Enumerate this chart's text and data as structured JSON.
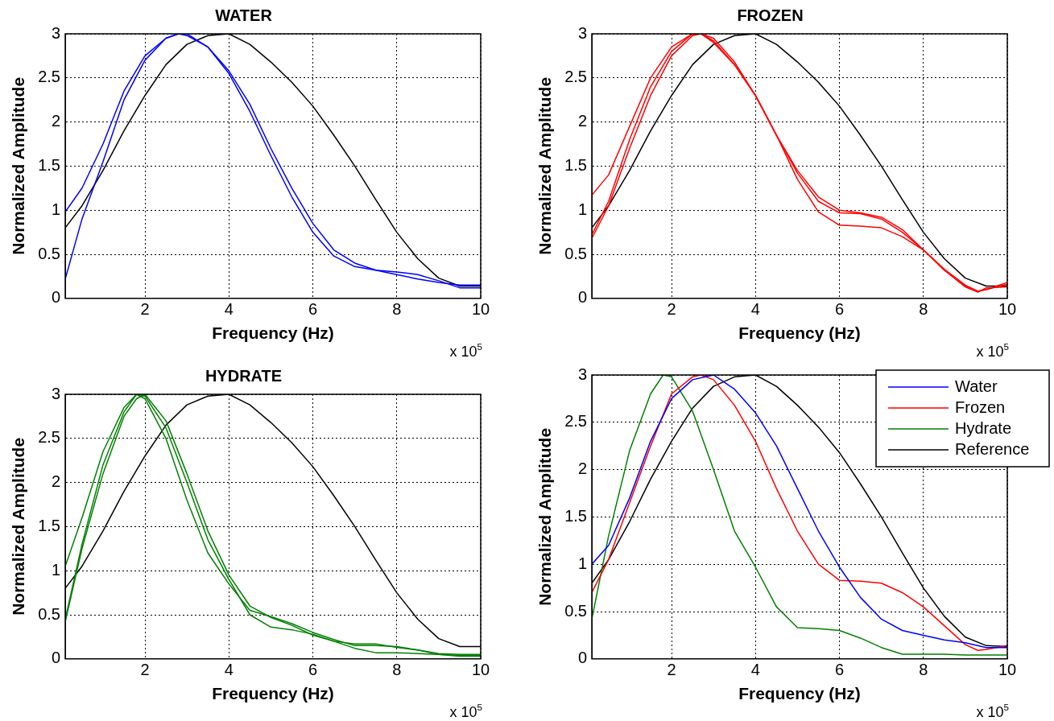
{
  "chart_data": [
    {
      "type": "line",
      "title": "WATER",
      "xlabel": "Frequency (Hz)",
      "ylabel": "Normalized Amplitude",
      "annotations": [
        "x 10$^{5}$"
      ],
      "xlim": [
        0.1,
        10
      ],
      "xticks": [
        2,
        4,
        6,
        8,
        10
      ],
      "ylim": [
        0,
        3
      ],
      "yticks": [
        0,
        0.5,
        1,
        1.5,
        2,
        2.5,
        3
      ],
      "grid": true,
      "marker": "none",
      "line_style": "solid",
      "series": [
        {
          "color": "#0000ff",
          "x": [
            0.1,
            0.5,
            1,
            1.5,
            2,
            2.5,
            2.8,
            3,
            3.5,
            4,
            4.5,
            5,
            5.5,
            6,
            6.5,
            7,
            7.5,
            8,
            8.5,
            9,
            9.5,
            10
          ],
          "values": [
            0.98,
            1.25,
            1.75,
            2.35,
            2.75,
            2.95,
            3.0,
            3.0,
            2.85,
            2.58,
            2.2,
            1.7,
            1.25,
            0.85,
            0.55,
            0.4,
            0.32,
            0.27,
            0.22,
            0.18,
            0.15,
            0.15
          ]
        },
        {
          "color": "#0000ff",
          "x": [
            0.1,
            0.5,
            1,
            1.5,
            2,
            2.5,
            2.8,
            3,
            3.5,
            4,
            4.5,
            5,
            5.5,
            6,
            6.5,
            7,
            7.5,
            8,
            8.5,
            9,
            9.5,
            10
          ],
          "values": [
            0.22,
            0.9,
            1.55,
            2.25,
            2.7,
            2.95,
            3.0,
            2.98,
            2.85,
            2.55,
            2.12,
            1.62,
            1.15,
            0.75,
            0.48,
            0.36,
            0.32,
            0.3,
            0.27,
            0.2,
            0.12,
            0.12
          ]
        },
        {
          "color": "#000000",
          "x": [
            0.1,
            0.5,
            1,
            1.5,
            2,
            2.5,
            3,
            3.5,
            4,
            4.5,
            5,
            5.5,
            6,
            6.5,
            7,
            7.5,
            8,
            8.5,
            9,
            9.5,
            10
          ],
          "values": [
            0.8,
            1.05,
            1.45,
            1.9,
            2.3,
            2.65,
            2.88,
            2.98,
            3.0,
            2.88,
            2.68,
            2.45,
            2.18,
            1.85,
            1.5,
            1.12,
            0.75,
            0.45,
            0.23,
            0.14,
            0.14
          ]
        }
      ]
    },
    {
      "type": "line",
      "title": "FROZEN",
      "xlabel": "Frequency (Hz)",
      "ylabel": "Normalized Amplitude",
      "annotations": [
        "x 10$^{5}$"
      ],
      "xlim": [
        0.1,
        10
      ],
      "xticks": [
        2,
        4,
        6,
        8,
        10
      ],
      "ylim": [
        0,
        3
      ],
      "yticks": [
        0,
        0.5,
        1,
        1.5,
        2,
        2.5,
        3
      ],
      "grid": true,
      "marker": "none",
      "line_style": "solid",
      "series": [
        {
          "color": "#ff0000",
          "x": [
            0.1,
            0.5,
            1,
            1.5,
            2,
            2.5,
            2.7,
            3,
            3.5,
            4,
            4.5,
            5,
            5.5,
            6,
            6.5,
            7,
            7.5,
            8,
            8.5,
            9,
            9.3,
            9.5,
            10
          ],
          "values": [
            1.17,
            1.4,
            1.95,
            2.5,
            2.85,
            3.0,
            3.0,
            2.9,
            2.65,
            2.3,
            1.85,
            1.45,
            1.15,
            1.0,
            0.97,
            0.92,
            0.78,
            0.55,
            0.32,
            0.14,
            0.08,
            0.1,
            0.18
          ]
        },
        {
          "color": "#ff0000",
          "x": [
            0.1,
            0.5,
            1,
            1.5,
            2,
            2.5,
            2.7,
            3,
            3.5,
            4,
            4.5,
            5,
            5.5,
            6,
            6.5,
            7,
            7.5,
            8,
            8.5,
            9,
            9.3,
            9.5,
            10
          ],
          "values": [
            0.72,
            1.1,
            1.8,
            2.4,
            2.8,
            3.0,
            3.0,
            2.92,
            2.65,
            2.3,
            1.85,
            1.42,
            1.1,
            0.97,
            0.96,
            0.9,
            0.75,
            0.55,
            0.33,
            0.15,
            0.08,
            0.1,
            0.16
          ]
        },
        {
          "color": "#ff0000",
          "x": [
            0.1,
            0.5,
            1,
            1.5,
            2,
            2.5,
            2.7,
            3,
            3.5,
            4,
            4.5,
            5,
            5.5,
            6,
            6.5,
            7,
            7.5,
            8,
            8.5,
            9,
            9.3,
            9.5,
            10
          ],
          "values": [
            0.68,
            1.05,
            1.7,
            2.3,
            2.75,
            2.98,
            3.0,
            2.95,
            2.68,
            2.3,
            1.85,
            1.35,
            0.98,
            0.83,
            0.82,
            0.8,
            0.7,
            0.55,
            0.32,
            0.13,
            0.07,
            0.12,
            0.13
          ]
        },
        {
          "color": "#000000",
          "x": [
            0.1,
            0.5,
            1,
            1.5,
            2,
            2.5,
            3,
            3.5,
            4,
            4.5,
            5,
            5.5,
            6,
            6.5,
            7,
            7.5,
            8,
            8.5,
            9,
            9.5,
            10
          ],
          "values": [
            0.8,
            1.05,
            1.45,
            1.9,
            2.3,
            2.65,
            2.88,
            2.98,
            3.0,
            2.88,
            2.68,
            2.45,
            2.18,
            1.85,
            1.5,
            1.12,
            0.75,
            0.45,
            0.23,
            0.14,
            0.14
          ]
        }
      ]
    },
    {
      "type": "line",
      "title": "HYDRATE",
      "xlabel": "Frequency (Hz)",
      "ylabel": "Normalized Amplitude",
      "annotations": [
        "x 10$^{5}$"
      ],
      "xlim": [
        0.1,
        10
      ],
      "xticks": [
        2,
        4,
        6,
        8,
        10
      ],
      "ylim": [
        0,
        3
      ],
      "yticks": [
        0,
        0.5,
        1,
        1.5,
        2,
        2.5,
        3
      ],
      "grid": true,
      "marker": "none",
      "line_style": "solid",
      "series": [
        {
          "color": "#008000",
          "x": [
            0.1,
            0.5,
            1,
            1.5,
            1.8,
            2,
            2.5,
            3,
            3.5,
            4,
            4.5,
            5,
            5.5,
            6,
            6.5,
            7,
            7.5,
            8,
            8.5,
            9,
            9.5,
            10
          ],
          "values": [
            1.05,
            1.6,
            2.35,
            2.85,
            3.0,
            2.95,
            2.5,
            1.8,
            1.2,
            0.85,
            0.55,
            0.48,
            0.4,
            0.3,
            0.22,
            0.15,
            0.15,
            0.14,
            0.1,
            0.05,
            0.04,
            0.04
          ]
        },
        {
          "color": "#008000",
          "x": [
            0.1,
            0.5,
            1,
            1.5,
            1.8,
            2,
            2.5,
            3,
            3.5,
            4,
            4.5,
            5,
            5.5,
            6,
            6.5,
            7,
            7.5,
            8,
            8.5,
            9,
            9.5,
            10
          ],
          "values": [
            0.45,
            1.3,
            2.2,
            2.8,
            3.0,
            2.98,
            2.62,
            2.0,
            1.35,
            0.9,
            0.5,
            0.36,
            0.33,
            0.28,
            0.2,
            0.12,
            0.07,
            0.07,
            0.06,
            0.05,
            0.03,
            0.03
          ]
        },
        {
          "color": "#008000",
          "x": [
            0.1,
            0.5,
            1,
            1.5,
            1.8,
            2,
            2.5,
            3,
            3.5,
            4,
            4.5,
            5,
            5.5,
            6,
            6.5,
            7,
            7.5,
            8,
            8.5,
            9,
            9.5,
            10
          ],
          "values": [
            0.42,
            1.25,
            2.1,
            2.75,
            2.95,
            3.0,
            2.7,
            2.1,
            1.45,
            0.95,
            0.6,
            0.47,
            0.38,
            0.27,
            0.2,
            0.17,
            0.17,
            0.13,
            0.1,
            0.06,
            0.05,
            0.05
          ]
        },
        {
          "color": "#000000",
          "x": [
            0.1,
            0.5,
            1,
            1.5,
            2,
            2.5,
            3,
            3.5,
            4,
            4.5,
            5,
            5.5,
            6,
            6.5,
            7,
            7.5,
            8,
            8.5,
            9,
            9.5,
            10
          ],
          "values": [
            0.8,
            1.05,
            1.45,
            1.9,
            2.3,
            2.65,
            2.88,
            2.98,
            3.0,
            2.88,
            2.68,
            2.45,
            2.18,
            1.85,
            1.5,
            1.12,
            0.75,
            0.45,
            0.23,
            0.14,
            0.14
          ]
        }
      ]
    },
    {
      "type": "line",
      "xlabel": "Frequency (Hz)",
      "ylabel": "Normalized Amplitude",
      "annotations": [
        "x 10$^{5}$"
      ],
      "xlim": [
        0.1,
        10
      ],
      "xticks": [
        2,
        4,
        6,
        8,
        10
      ],
      "ylim": [
        0,
        3
      ],
      "yticks": [
        0,
        0.5,
        1,
        1.5,
        2,
        2.5,
        3
      ],
      "grid": true,
      "marker": "none",
      "line_style": "solid",
      "legend": "top right",
      "series": [
        {
          "name": "Water",
          "color": "#0000ff",
          "x": [
            0.1,
            0.5,
            1,
            1.5,
            2,
            2.5,
            3,
            3.5,
            4,
            4.5,
            5,
            5.5,
            6,
            6.5,
            7,
            7.5,
            8,
            8.5,
            9,
            9.5,
            10
          ],
          "values": [
            1.0,
            1.2,
            1.7,
            2.3,
            2.75,
            2.95,
            3.0,
            2.85,
            2.6,
            2.25,
            1.8,
            1.35,
            0.97,
            0.65,
            0.42,
            0.3,
            0.25,
            0.2,
            0.17,
            0.12,
            0.12
          ]
        },
        {
          "name": "Frozen",
          "color": "#ff0000",
          "x": [
            0.1,
            0.5,
            1,
            1.5,
            2,
            2.5,
            2.7,
            3,
            3.5,
            4,
            4.5,
            5,
            5.5,
            6,
            6.5,
            7,
            7.5,
            8,
            8.5,
            9,
            9.3,
            9.5,
            10
          ],
          "values": [
            0.7,
            1.05,
            1.65,
            2.25,
            2.8,
            2.98,
            3.0,
            2.95,
            2.68,
            2.3,
            1.8,
            1.35,
            1.0,
            0.83,
            0.82,
            0.8,
            0.7,
            0.55,
            0.35,
            0.15,
            0.09,
            0.1,
            0.14
          ]
        },
        {
          "name": "Hydrate",
          "color": "#008000",
          "x": [
            0.1,
            0.5,
            1,
            1.5,
            1.8,
            2,
            2.5,
            3,
            3.5,
            4,
            4.5,
            5,
            5.5,
            6,
            6.5,
            7,
            7.5,
            8,
            8.5,
            9,
            9.5,
            10
          ],
          "values": [
            0.42,
            1.3,
            2.2,
            2.8,
            3.0,
            2.98,
            2.62,
            2.0,
            1.35,
            0.97,
            0.55,
            0.33,
            0.32,
            0.3,
            0.22,
            0.12,
            0.05,
            0.05,
            0.05,
            0.04,
            0.04,
            0.04
          ]
        },
        {
          "name": "Reference",
          "color": "#000000",
          "x": [
            0.1,
            0.5,
            1,
            1.5,
            2,
            2.5,
            3,
            3.5,
            4,
            4.5,
            5,
            5.5,
            6,
            6.5,
            7,
            7.5,
            8,
            8.5,
            9,
            9.5,
            10
          ],
          "values": [
            0.8,
            1.05,
            1.45,
            1.9,
            2.3,
            2.65,
            2.88,
            2.98,
            3.0,
            2.88,
            2.68,
            2.45,
            2.18,
            1.85,
            1.5,
            1.12,
            0.75,
            0.45,
            0.23,
            0.14,
            0.13
          ]
        }
      ]
    }
  ]
}
